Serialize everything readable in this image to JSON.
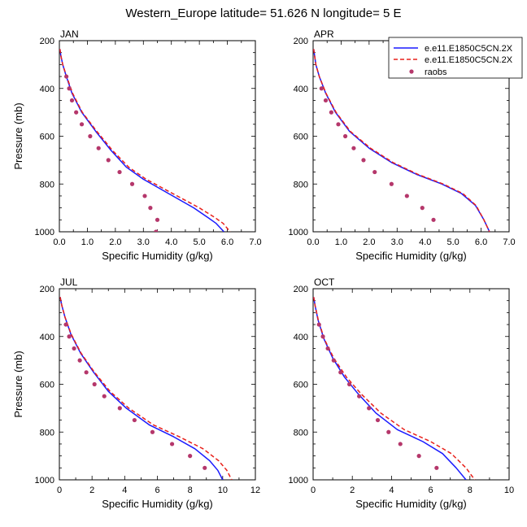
{
  "title": "Western_Europe  latitude= 51.626 N longitude= 5 E",
  "legend": [
    {
      "label": "e.e11.E1850C5CN.2X",
      "kind": "line",
      "style": "solid",
      "color": "#1a1aff"
    },
    {
      "label": "e.e11.E1850C5CN.2X",
      "kind": "line",
      "style": "dashed",
      "color": "#e8201a"
    },
    {
      "label": "raobs",
      "kind": "marker",
      "color": "#b5376b"
    }
  ],
  "chart_data": [
    {
      "type": "line",
      "panel": "JAN",
      "xlabel": "Specific Humidity (g/kg)",
      "ylabel": "Pressure (mb)",
      "xlim": [
        0,
        7
      ],
      "xticks": [
        "0.0",
        "1.0",
        "2.0",
        "3.0",
        "4.0",
        "5.0",
        "6.0",
        "7.0"
      ],
      "xtick_values": [
        0,
        1,
        2,
        3,
        4,
        5,
        6,
        7
      ],
      "ylim": [
        1000,
        200
      ],
      "yticks": [
        200,
        400,
        600,
        800,
        1000
      ],
      "series": [
        {
          "name": "e.e11.E1850C5CN.2X",
          "style": "solid",
          "color": "#1a1aff",
          "x": [
            0.02,
            0.05,
            0.12,
            0.25,
            0.45,
            0.8,
            1.3,
            1.85,
            2.4,
            3.0,
            3.9,
            4.8,
            5.3,
            5.6,
            5.88
          ],
          "y": [
            235,
            260,
            300,
            350,
            420,
            500,
            580,
            660,
            730,
            780,
            840,
            900,
            940,
            965,
            1000
          ]
        },
        {
          "name": "e.e11.E1850C5CN.2X",
          "style": "dashed",
          "color": "#e8201a",
          "x": [
            0.02,
            0.05,
            0.12,
            0.26,
            0.47,
            0.82,
            1.34,
            1.9,
            2.48,
            3.1,
            4.05,
            5.0,
            5.55,
            5.85,
            6.1
          ],
          "y": [
            235,
            260,
            300,
            350,
            420,
            500,
            580,
            660,
            730,
            780,
            840,
            900,
            940,
            965,
            1000
          ]
        },
        {
          "name": "raobs",
          "style": "markers",
          "color": "#b5376b",
          "x": [
            0.25,
            0.35,
            0.45,
            0.6,
            0.8,
            1.1,
            1.4,
            1.75,
            2.15,
            2.6,
            3.05,
            3.25,
            3.5,
            3.45
          ],
          "y": [
            350,
            400,
            450,
            500,
            550,
            600,
            650,
            700,
            750,
            800,
            850,
            900,
            950,
            1000
          ]
        }
      ]
    },
    {
      "type": "line",
      "panel": "APR",
      "xlabel": "Specific Humidity (g/kg)",
      "ylabel": "",
      "xlim": [
        0,
        7
      ],
      "xticks": [
        "0.0",
        "1.0",
        "2.0",
        "3.0",
        "4.0",
        "5.0",
        "6.0",
        "7.0"
      ],
      "xtick_values": [
        0,
        1,
        2,
        3,
        4,
        5,
        6,
        7
      ],
      "ylim": [
        1000,
        200
      ],
      "yticks": [
        200,
        400,
        600,
        800,
        1000
      ],
      "series": [
        {
          "name": "e.e11.E1850C5CN.2X",
          "style": "solid",
          "color": "#1a1aff",
          "x": [
            0.02,
            0.05,
            0.1,
            0.22,
            0.45,
            0.8,
            1.3,
            2.0,
            2.8,
            3.7,
            4.6,
            5.3,
            5.8,
            6.1,
            6.3
          ],
          "y": [
            235,
            260,
            300,
            350,
            420,
            500,
            580,
            650,
            710,
            760,
            800,
            840,
            890,
            950,
            1000
          ]
        },
        {
          "name": "e.e11.E1850C5CN.2X",
          "style": "dashed",
          "color": "#e8201a",
          "x": [
            0.02,
            0.05,
            0.1,
            0.22,
            0.46,
            0.82,
            1.33,
            2.05,
            2.85,
            3.75,
            4.65,
            5.35,
            5.82,
            6.1,
            6.3
          ],
          "y": [
            235,
            260,
            300,
            350,
            420,
            500,
            580,
            650,
            710,
            760,
            800,
            840,
            890,
            950,
            1000
          ]
        },
        {
          "name": "raobs",
          "style": "markers",
          "color": "#b5376b",
          "x": [
            0.3,
            0.45,
            0.65,
            0.9,
            1.15,
            1.45,
            1.8,
            2.2,
            2.8,
            3.35,
            3.9,
            4.3
          ],
          "y": [
            400,
            450,
            500,
            550,
            600,
            650,
            700,
            750,
            800,
            850,
            900,
            950
          ]
        }
      ]
    },
    {
      "type": "line",
      "panel": "JUL",
      "xlabel": "Specific Humidity (g/kg)",
      "ylabel": "Pressure (mb)",
      "xlim": [
        0,
        12
      ],
      "xticks": [
        "0",
        "2",
        "4",
        "6",
        "8",
        "10",
        "12"
      ],
      "xtick_values": [
        0,
        2,
        4,
        6,
        8,
        10,
        12
      ],
      "ylim": [
        1000,
        200
      ],
      "yticks": [
        200,
        400,
        600,
        800,
        1000
      ],
      "series": [
        {
          "name": "e.e11.E1850C5CN.2X",
          "style": "solid",
          "color": "#1a1aff",
          "x": [
            0.05,
            0.15,
            0.35,
            0.7,
            1.3,
            2.1,
            3.0,
            4.1,
            5.5,
            7.0,
            8.3,
            9.2,
            9.7,
            10.0
          ],
          "y": [
            235,
            270,
            320,
            390,
            470,
            550,
            630,
            700,
            770,
            820,
            870,
            920,
            960,
            1000
          ]
        },
        {
          "name": "e.e11.E1850C5CN.2X",
          "style": "dashed",
          "color": "#e8201a",
          "x": [
            0.05,
            0.15,
            0.35,
            0.72,
            1.33,
            2.15,
            3.1,
            4.25,
            5.75,
            7.35,
            8.8,
            9.75,
            10.25,
            10.55
          ],
          "y": [
            235,
            270,
            320,
            390,
            470,
            550,
            630,
            700,
            770,
            820,
            870,
            920,
            960,
            1000
          ]
        },
        {
          "name": "raobs",
          "style": "markers",
          "color": "#b5376b",
          "x": [
            0.4,
            0.6,
            0.9,
            1.25,
            1.65,
            2.15,
            2.75,
            3.7,
            4.6,
            5.7,
            6.9,
            8.0,
            8.9
          ],
          "y": [
            350,
            400,
            450,
            500,
            550,
            600,
            650,
            700,
            750,
            800,
            850,
            900,
            950
          ]
        }
      ]
    },
    {
      "type": "line",
      "panel": "OCT",
      "xlabel": "Specific Humidity (g/kg)",
      "ylabel": "",
      "xlim": [
        0,
        10
      ],
      "xticks": [
        "0",
        "2",
        "4",
        "6",
        "8",
        "10"
      ],
      "xtick_values": [
        0,
        2,
        4,
        6,
        8,
        10
      ],
      "ylim": [
        1000,
        200
      ],
      "yticks": [
        200,
        400,
        600,
        800,
        1000
      ],
      "series": [
        {
          "name": "e.e11.E1850C5CN.2X",
          "style": "solid",
          "color": "#1a1aff",
          "x": [
            0.03,
            0.1,
            0.25,
            0.55,
            1.0,
            1.6,
            2.3,
            3.2,
            4.3,
            5.6,
            6.6,
            7.3,
            7.8
          ],
          "y": [
            235,
            270,
            330,
            410,
            490,
            570,
            640,
            720,
            790,
            840,
            890,
            950,
            1000
          ]
        },
        {
          "name": "e.e11.E1850C5CN.2X",
          "style": "dashed",
          "color": "#e8201a",
          "x": [
            0.03,
            0.1,
            0.26,
            0.57,
            1.05,
            1.7,
            2.45,
            3.45,
            4.65,
            6.0,
            7.05,
            7.8,
            8.25
          ],
          "y": [
            235,
            270,
            330,
            410,
            490,
            570,
            640,
            720,
            790,
            840,
            890,
            950,
            1000
          ]
        },
        {
          "name": "raobs",
          "style": "markers",
          "color": "#b5376b",
          "x": [
            0.3,
            0.5,
            0.75,
            1.05,
            1.4,
            1.85,
            2.35,
            2.85,
            3.3,
            3.85,
            4.45,
            5.4,
            6.3
          ],
          "y": [
            350,
            400,
            450,
            500,
            550,
            600,
            650,
            700,
            750,
            800,
            850,
            900,
            950
          ]
        }
      ]
    }
  ]
}
